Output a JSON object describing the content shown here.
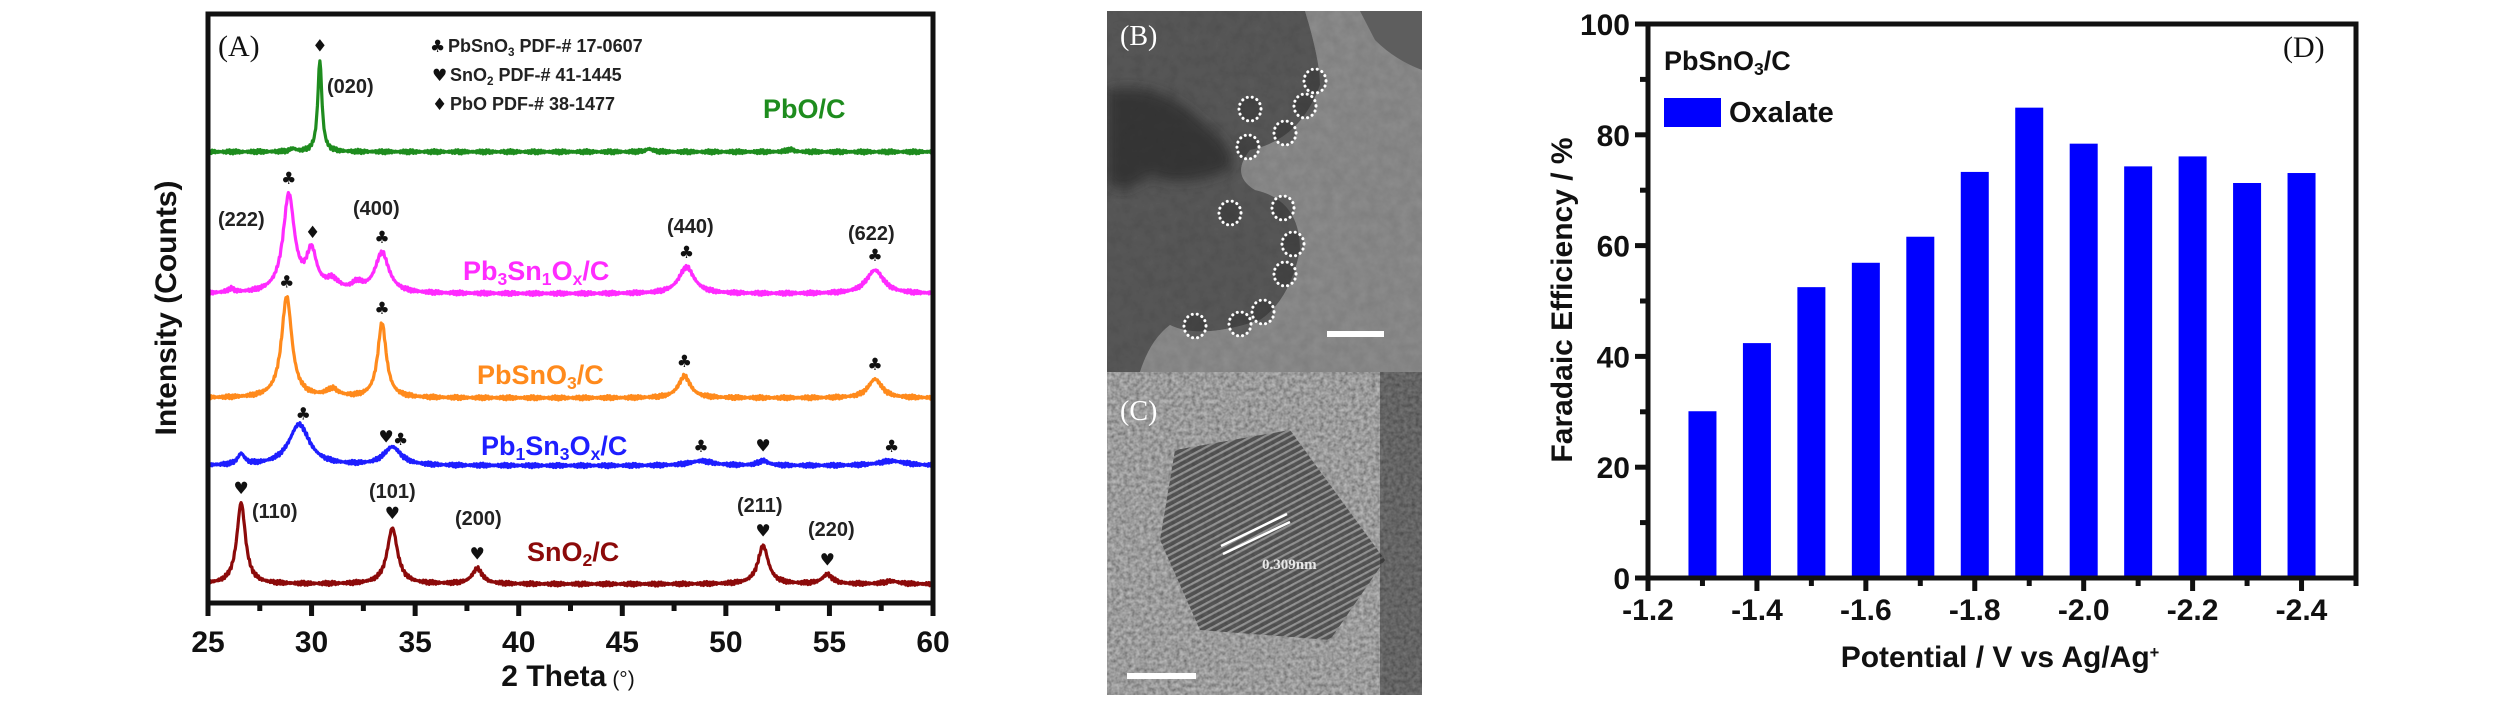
{
  "panels": {
    "A": {
      "label": "(A)"
    },
    "B": {
      "label": "(B)"
    },
    "C": {
      "label": "(C)",
      "lattice_spacing": "0.309nm"
    },
    "D": {
      "label": "(D)"
    }
  },
  "chart_data": [
    {
      "type": "line",
      "panel": "A",
      "xlabel": "2 Theta",
      "xlabel_unit": "(°)",
      "ylabel": "Intensity (Counts)",
      "xlim": [
        25,
        60
      ],
      "ylim": [
        0,
        100
      ],
      "xticks": [
        25,
        30,
        35,
        40,
        45,
        50,
        55,
        60
      ],
      "grid": false,
      "legend": [
        {
          "symbol": "♣",
          "parts": [
            {
              "t": "PbSnO"
            },
            {
              "t": "3",
              "sub": true
            },
            {
              "t": " PDF-# 17-0607"
            }
          ]
        },
        {
          "symbol": "♥",
          "parts": [
            {
              "t": " SnO"
            },
            {
              "t": "2",
              "sub": true
            },
            {
              "t": " PDF-# 41-1445"
            }
          ]
        },
        {
          "symbol": "♦",
          "parts": [
            {
              "t": "PbO PDF-# 38-1477"
            }
          ]
        }
      ],
      "series": [
        {
          "parts": [
            {
              "t": "PbO/C"
            }
          ],
          "color": "#1e8c1e",
          "baseline": 76.6,
          "peaks": [
            [
              30.4,
              15.5,
              0.12
            ],
            [
              29.1,
              0.5,
              0.15
            ],
            [
              46.3,
              0.5,
              0.2
            ],
            [
              53.1,
              0.4,
              0.2
            ]
          ]
        },
        {
          "parts": [
            {
              "t": "Pb"
            },
            {
              "t": "3",
              "sub": true
            },
            {
              "t": "Sn"
            },
            {
              "t": "1",
              "sub": true
            },
            {
              "t": "O"
            },
            {
              "t": "x",
              "sub": true
            },
            {
              "t": "/C"
            }
          ],
          "color": "#ff2bff",
          "baseline": 52.5,
          "peaks": [
            [
              28.9,
              16.5,
              0.33
            ],
            [
              30.0,
              6.5,
              0.3
            ],
            [
              31.0,
              1.8,
              0.4
            ],
            [
              32.2,
              1.3,
              0.3
            ],
            [
              33.4,
              6.8,
              0.4
            ],
            [
              26.1,
              0.6,
              0.2
            ],
            [
              48.1,
              4.5,
              0.45
            ],
            [
              57.2,
              4.0,
              0.5
            ]
          ]
        },
        {
          "parts": [
            {
              "t": "PbSnO"
            },
            {
              "t": "3",
              "sub": true
            },
            {
              "t": "/C"
            }
          ],
          "color": "#ff8a1c",
          "baseline": 34.8,
          "peaks": [
            [
              28.8,
              17.2,
              0.3
            ],
            [
              31.0,
              1.3,
              0.35
            ],
            [
              33.4,
              12.6,
              0.25
            ],
            [
              48.0,
              3.7,
              0.35
            ],
            [
              57.2,
              3.2,
              0.4
            ]
          ]
        },
        {
          "parts": [
            {
              "t": "Pb"
            },
            {
              "t": "1",
              "sub": true
            },
            {
              "t": "Sn"
            },
            {
              "t": "3",
              "sub": true
            },
            {
              "t": "O"
            },
            {
              "t": "x",
              "sub": true
            },
            {
              "t": "/C"
            }
          ],
          "color": "#1e1eff",
          "baseline": 23.3,
          "peaks": [
            [
              26.6,
              1.8,
              0.2
            ],
            [
              29.4,
              7.0,
              0.6
            ],
            [
              33.9,
              3.1,
              0.5
            ],
            [
              48.8,
              0.8,
              0.7
            ],
            [
              51.8,
              0.8,
              0.3
            ],
            [
              58.0,
              0.8,
              0.8
            ]
          ]
        },
        {
          "parts": [
            {
              "t": "SnO"
            },
            {
              "t": "2",
              "sub": true
            },
            {
              "t": "/C"
            }
          ],
          "color": "#8c0a0a",
          "baseline": 3.2,
          "peaks": [
            [
              26.6,
              13.8,
              0.25
            ],
            [
              33.9,
              9.5,
              0.3
            ],
            [
              38.0,
              2.6,
              0.3
            ],
            [
              51.8,
              6.5,
              0.3
            ],
            [
              54.9,
              1.6,
              0.3
            ],
            [
              58.0,
              0.5,
              0.4
            ]
          ]
        }
      ],
      "markers": [
        {
          "symbol": "♦",
          "x": 30.4,
          "series": 0
        },
        {
          "symbol": "♣",
          "x": 28.9,
          "series": 1
        },
        {
          "symbol": "♦",
          "x": 30.05,
          "series": 1
        },
        {
          "symbol": "♣",
          "x": 33.4,
          "series": 1
        },
        {
          "symbol": "♣",
          "x": 48.1,
          "series": 1
        },
        {
          "symbol": "♣",
          "x": 57.2,
          "series": 1
        },
        {
          "symbol": "♣",
          "x": 28.8,
          "series": 2
        },
        {
          "symbol": "♣",
          "x": 33.4,
          "series": 2
        },
        {
          "symbol": "♣",
          "x": 48.0,
          "series": 2
        },
        {
          "symbol": "♣",
          "x": 57.2,
          "series": 2
        },
        {
          "symbol": "♣",
          "x": 29.6,
          "series": 3
        },
        {
          "symbol": "♥",
          "x": 33.6,
          "series": 3
        },
        {
          "symbol": "♣",
          "x": 34.3,
          "series": 3
        },
        {
          "symbol": "♣",
          "x": 48.8,
          "series": 3
        },
        {
          "symbol": "♥",
          "x": 51.8,
          "series": 3
        },
        {
          "symbol": "♣",
          "x": 58.0,
          "series": 3
        },
        {
          "symbol": "♥",
          "x": 26.6,
          "series": 4
        },
        {
          "symbol": "♥",
          "x": 33.9,
          "series": 4
        },
        {
          "symbol": "♥",
          "x": 38.0,
          "series": 4
        },
        {
          "symbol": "♥",
          "x": 51.8,
          "series": 4
        },
        {
          "symbol": "♥",
          "x": 54.9,
          "series": 4
        }
      ],
      "annotations": [
        "(020)",
        "(222)",
        "(400)",
        "(440)",
        "(622)",
        "(110)",
        "(101)",
        "(200)",
        "(211)",
        "(220)"
      ]
    },
    {
      "type": "bar",
      "panel": "D",
      "title_parts": [
        {
          "t": "PbSnO"
        },
        {
          "t": "3",
          "sub": true
        },
        {
          "t": "/C"
        }
      ],
      "xlabel_parts": [
        {
          "t": "Potential / V vs Ag/Ag"
        },
        {
          "t": "+",
          "sup": true
        }
      ],
      "ylabel": "Faradaic Efficiency / %",
      "xlim": [
        -1.2,
        -2.5
      ],
      "ylim": [
        0,
        100
      ],
      "xticks": [
        "-1.2",
        "-1.4",
        "-1.6",
        "-1.8",
        "-2.0",
        "-2.2",
        "-2.4"
      ],
      "yticks": [
        "0",
        "20",
        "40",
        "60",
        "80",
        "100"
      ],
      "categories": [
        -1.3,
        -1.4,
        -1.5,
        -1.6,
        -1.7,
        -1.8,
        -1.9,
        -2.0,
        -2.1,
        -2.2,
        -2.3,
        -2.4
      ],
      "series": [
        {
          "name": "Oxalate",
          "color": "#0000ff",
          "values": [
            30.1,
            42.4,
            52.5,
            56.9,
            61.6,
            73.3,
            84.9,
            78.4,
            74.3,
            76.1,
            71.3,
            73.1
          ]
        }
      ],
      "legend": "top-left",
      "grid": false
    }
  ]
}
